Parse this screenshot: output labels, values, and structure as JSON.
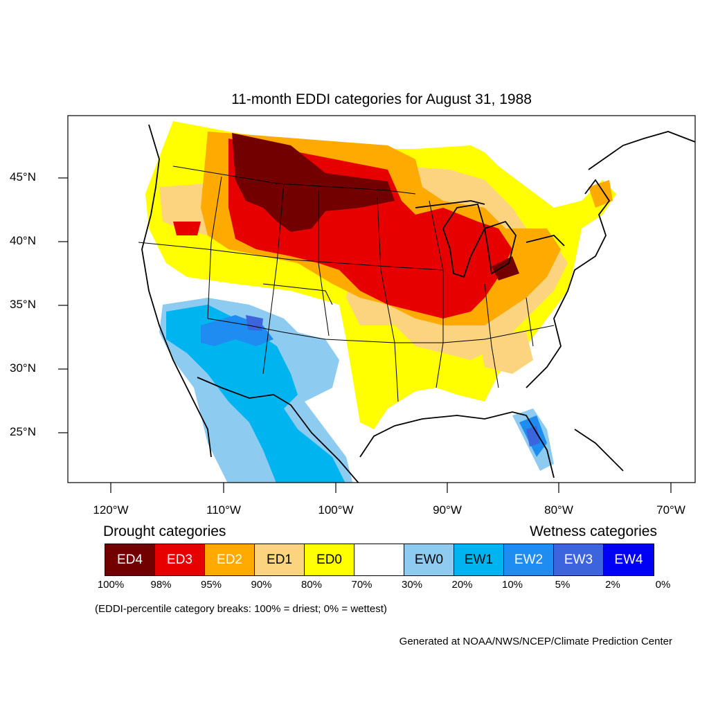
{
  "title": "11-month EDDI categories for August 31, 1988",
  "axes": {
    "lat_labels": [
      "45°N",
      "40°N",
      "35°N",
      "30°N",
      "25°N"
    ],
    "lon_labels": [
      "120°W",
      "110°W",
      "100°W",
      "90°W",
      "80°W",
      "70°W"
    ]
  },
  "legend": {
    "drought_heading": "Drought categories",
    "wetness_heading": "Wetness categories",
    "categories": [
      {
        "label": "ED4",
        "color": "#730000",
        "text_color": "#ffffff"
      },
      {
        "label": "ED3",
        "color": "#e60000",
        "text_color": "#ffffff"
      },
      {
        "label": "ED2",
        "color": "#ffaa00",
        "text_color": "#ffffff"
      },
      {
        "label": "ED1",
        "color": "#fcd37f",
        "text_color": "#000000"
      },
      {
        "label": "ED0",
        "color": "#ffff00",
        "text_color": "#000000"
      },
      {
        "label": "",
        "color": "#ffffff",
        "text_color": "#000000"
      },
      {
        "label": "EW0",
        "color": "#8ecbf0",
        "text_color": "#000000"
      },
      {
        "label": "EW1",
        "color": "#00b4f0",
        "text_color": "#000000"
      },
      {
        "label": "EW2",
        "color": "#1e8cf0",
        "text_color": "#ffffff"
      },
      {
        "label": "EW3",
        "color": "#3c64dc",
        "text_color": "#ffffff"
      },
      {
        "label": "EW4",
        "color": "#0000f5",
        "text_color": "#ffffff"
      }
    ],
    "breaks": [
      "100%",
      "98%",
      "95%",
      "90%",
      "80%",
      "70%",
      "30%",
      "20%",
      "10%",
      "5%",
      "2%",
      "0%"
    ]
  },
  "footnote": "(EDDI-percentile category breaks: 100% = driest; 0% = wettest)",
  "credit": "Generated at NOAA/NWS/NCEP/Climate Prediction Center"
}
